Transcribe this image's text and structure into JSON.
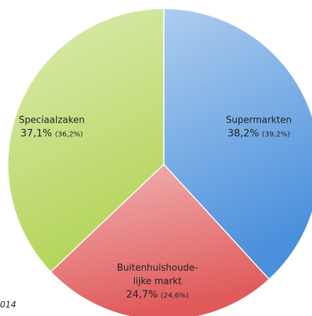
{
  "chart_data": {
    "type": "pie",
    "categories": [
      "Supermarkten",
      "Buitenhuishoude-\nlijke markt",
      "Speciaalzaken"
    ],
    "values": [
      38.2,
      24.7,
      37.1
    ],
    "value_labels": [
      "38,2%",
      "24,7%",
      "37,1%"
    ],
    "previous_values": [
      39.2,
      24.6,
      36.2
    ],
    "previous_value_labels": [
      "(39,2%)",
      "(24,6%)",
      "(36,2%)"
    ],
    "colors": [
      "#4a90dc",
      "#e05a5a",
      "#b4d459"
    ],
    "annotation": "014"
  }
}
